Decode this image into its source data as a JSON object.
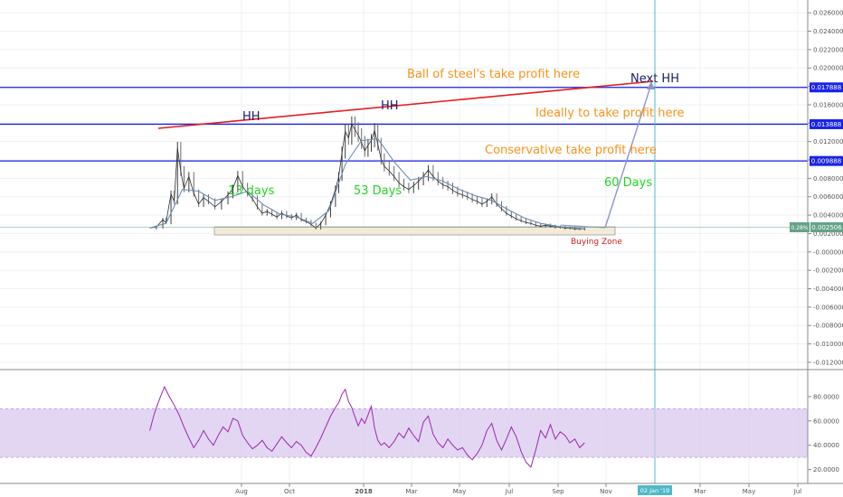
{
  "chart_data": [
    {
      "type": "candlestick",
      "price_axis": {
        "ticks": [
          "0.026000",
          "0.024000",
          "0.022000",
          "0.020000",
          "0.018000",
          "0.016000",
          "0.014000",
          "0.012000",
          "0.010000",
          "0.008000",
          "0.006000",
          "0.004000",
          "0.002000",
          "-0.000000",
          "-0.002000",
          "-0.004000",
          "-0.006000",
          "-0.008000",
          "-0.010000",
          "-0.012000"
        ],
        "range": [
          -0.0125,
          0.027
        ]
      },
      "time_axis": {
        "labels": [
          "Aug",
          "Oct",
          "2018",
          "Mar",
          "May",
          "Jul",
          "Sep",
          "Nov",
          "02 Jan '19",
          "Mar",
          "May",
          "Jul"
        ]
      },
      "price_lines": [
        {
          "label": "0.017888",
          "value": 0.017888,
          "color": "#1a24e6"
        },
        {
          "label": "0.013888",
          "value": 0.013888,
          "color": "#1a24e6"
        },
        {
          "label": "0.009888",
          "value": 0.009888,
          "color": "#1a24e6"
        }
      ],
      "current_price": {
        "label": "0.002506",
        "change": "0.28%",
        "value": 0.002506,
        "color": "#63a389"
      },
      "series_price": [
        [
          0,
          0.0026
        ],
        [
          4,
          0.0027
        ],
        [
          8,
          0.0035
        ],
        [
          10,
          0.0032
        ],
        [
          13,
          0.0063
        ],
        [
          15,
          0.0055
        ],
        [
          17,
          0.0113
        ],
        [
          19,
          0.0088
        ],
        [
          21,
          0.0069
        ],
        [
          24,
          0.0082
        ],
        [
          27,
          0.0064
        ],
        [
          30,
          0.0052
        ],
        [
          33,
          0.0059
        ],
        [
          36,
          0.0055
        ],
        [
          40,
          0.0049
        ],
        [
          44,
          0.0055
        ],
        [
          48,
          0.0062
        ],
        [
          51,
          0.0069
        ],
        [
          54,
          0.0083
        ],
        [
          57,
          0.0071
        ],
        [
          60,
          0.0064
        ],
        [
          63,
          0.0058
        ],
        [
          66,
          0.0049
        ],
        [
          69,
          0.0042
        ],
        [
          72,
          0.0044
        ],
        [
          75,
          0.0041
        ],
        [
          78,
          0.0038
        ],
        [
          81,
          0.0042
        ],
        [
          84,
          0.0039
        ],
        [
          87,
          0.0037
        ],
        [
          90,
          0.004
        ],
        [
          93,
          0.0035
        ],
        [
          96,
          0.0033
        ],
        [
          99,
          0.003
        ],
        [
          102,
          0.0026
        ],
        [
          105,
          0.0031
        ],
        [
          108,
          0.004
        ],
        [
          111,
          0.0052
        ],
        [
          114,
          0.0068
        ],
        [
          116,
          0.0082
        ],
        [
          118,
          0.0108
        ],
        [
          120,
          0.0131
        ],
        [
          122,
          0.0124
        ],
        [
          124,
          0.0139
        ],
        [
          126,
          0.0133
        ],
        [
          128,
          0.0127
        ],
        [
          130,
          0.0119
        ],
        [
          132,
          0.011
        ],
        [
          134,
          0.0116
        ],
        [
          136,
          0.0121
        ],
        [
          138,
          0.0132
        ],
        [
          140,
          0.0117
        ],
        [
          142,
          0.0101
        ],
        [
          144,
          0.0093
        ],
        [
          147,
          0.0088
        ],
        [
          150,
          0.0082
        ],
        [
          153,
          0.0075
        ],
        [
          156,
          0.0071
        ],
        [
          159,
          0.0068
        ],
        [
          162,
          0.0072
        ],
        [
          165,
          0.0077
        ],
        [
          168,
          0.0082
        ],
        [
          171,
          0.0089
        ],
        [
          174,
          0.0082
        ],
        [
          177,
          0.0077
        ],
        [
          180,
          0.0073
        ],
        [
          183,
          0.0071
        ],
        [
          186,
          0.0067
        ],
        [
          189,
          0.0064
        ],
        [
          192,
          0.0062
        ],
        [
          195,
          0.006
        ],
        [
          198,
          0.0057
        ],
        [
          201,
          0.0055
        ],
        [
          204,
          0.0052
        ],
        [
          207,
          0.0055
        ],
        [
          210,
          0.006
        ],
        [
          213,
          0.0052
        ],
        [
          216,
          0.0047
        ],
        [
          219,
          0.0042
        ],
        [
          222,
          0.0039
        ],
        [
          225,
          0.0036
        ],
        [
          228,
          0.0034
        ],
        [
          231,
          0.0032
        ],
        [
          234,
          0.0031
        ],
        [
          237,
          0.0029
        ],
        [
          240,
          0.0028
        ],
        [
          243,
          0.0029
        ],
        [
          246,
          0.0028
        ],
        [
          249,
          0.0027
        ],
        [
          252,
          0.0027
        ],
        [
          255,
          0.0026
        ],
        [
          258,
          0.0026
        ],
        [
          261,
          0.0025
        ],
        [
          264,
          0.0025
        ],
        [
          267,
          0.0025
        ]
      ],
      "series_ma": [
        [
          0,
          0.0026
        ],
        [
          10,
          0.0031
        ],
        [
          20,
          0.0068
        ],
        [
          30,
          0.0066
        ],
        [
          40,
          0.0056
        ],
        [
          50,
          0.006
        ],
        [
          60,
          0.0066
        ],
        [
          70,
          0.0051
        ],
        [
          80,
          0.0041
        ],
        [
          90,
          0.0038
        ],
        [
          100,
          0.0031
        ],
        [
          110,
          0.0045
        ],
        [
          120,
          0.0095
        ],
        [
          130,
          0.0121
        ],
        [
          140,
          0.0123
        ],
        [
          150,
          0.0098
        ],
        [
          160,
          0.0078
        ],
        [
          170,
          0.0082
        ],
        [
          180,
          0.0077
        ],
        [
          190,
          0.0068
        ],
        [
          200,
          0.0061
        ],
        [
          210,
          0.0056
        ],
        [
          220,
          0.0046
        ],
        [
          230,
          0.0037
        ],
        [
          240,
          0.0031
        ],
        [
          250,
          0.0028
        ],
        [
          260,
          0.0026
        ],
        [
          267,
          0.0025
        ]
      ],
      "x_domain": [
        -92,
        404
      ]
    },
    {
      "type": "line",
      "y_axis": {
        "ticks": [
          "80.0000",
          "60.0000",
          "40.0000",
          "20.0000"
        ],
        "range": [
          10,
          100
        ]
      },
      "band": [
        30,
        70
      ],
      "series": [
        {
          "values": [
            [
              0,
              52
            ],
            [
              3,
              67
            ],
            [
              6,
              78
            ],
            [
              9,
              88
            ],
            [
              12,
              80
            ],
            [
              15,
              73
            ],
            [
              18,
              65
            ],
            [
              21,
              55
            ],
            [
              24,
              46
            ],
            [
              27,
              38
            ],
            [
              30,
              44
            ],
            [
              33,
              52
            ],
            [
              36,
              45
            ],
            [
              39,
              40
            ],
            [
              42,
              48
            ],
            [
              45,
              55
            ],
            [
              48,
              51
            ],
            [
              51,
              62
            ],
            [
              54,
              60
            ],
            [
              57,
              48
            ],
            [
              60,
              42
            ],
            [
              63,
              37
            ],
            [
              66,
              40
            ],
            [
              69,
              44
            ],
            [
              72,
              38
            ],
            [
              75,
              35
            ],
            [
              78,
              41
            ],
            [
              81,
              47
            ],
            [
              84,
              42
            ],
            [
              87,
              38
            ],
            [
              90,
              43
            ],
            [
              93,
              40
            ],
            [
              96,
              34
            ],
            [
              99,
              31
            ],
            [
              102,
              38
            ],
            [
              105,
              46
            ],
            [
              108,
              55
            ],
            [
              111,
              64
            ],
            [
              114,
              71
            ],
            [
              116,
              75
            ],
            [
              118,
              82
            ],
            [
              120,
              86
            ],
            [
              122,
              76
            ],
            [
              124,
              71
            ],
            [
              126,
              63
            ],
            [
              128,
              56
            ],
            [
              130,
              62
            ],
            [
              132,
              58
            ],
            [
              134,
              65
            ],
            [
              136,
              72
            ],
            [
              138,
              54
            ],
            [
              140,
              44
            ],
            [
              142,
              40
            ],
            [
              144,
              42
            ],
            [
              147,
              38
            ],
            [
              150,
              43
            ],
            [
              153,
              50
            ],
            [
              156,
              46
            ],
            [
              159,
              54
            ],
            [
              162,
              48
            ],
            [
              165,
              43
            ],
            [
              168,
              59
            ],
            [
              171,
              64
            ],
            [
              174,
              49
            ],
            [
              177,
              42
            ],
            [
              180,
              38
            ],
            [
              183,
              45
            ],
            [
              186,
              40
            ],
            [
              189,
              36
            ],
            [
              192,
              38
            ],
            [
              195,
              32
            ],
            [
              198,
              28
            ],
            [
              201,
              33
            ],
            [
              204,
              40
            ],
            [
              207,
              52
            ],
            [
              210,
              58
            ],
            [
              213,
              44
            ],
            [
              216,
              36
            ],
            [
              219,
              45
            ],
            [
              222,
              55
            ],
            [
              225,
              47
            ],
            [
              228,
              35
            ],
            [
              231,
              26
            ],
            [
              234,
              22
            ],
            [
              237,
              36
            ],
            [
              240,
              52
            ],
            [
              243,
              46
            ],
            [
              246,
              57
            ],
            [
              249,
              45
            ],
            [
              252,
              51
            ],
            [
              255,
              48
            ],
            [
              258,
              42
            ],
            [
              261,
              45
            ],
            [
              264,
              38
            ],
            [
              267,
              42
            ]
          ],
          "color": "#9c27b0"
        }
      ]
    }
  ],
  "annotations": {
    "hh_left": "HH",
    "hh_mid": "HH",
    "next_hh": "Next HH",
    "days_13": "13 days",
    "days_53": "53 Days",
    "days_60": "60 Days",
    "ball_of_steel": "Ball of steel's take profit here",
    "ideally": "Ideally to take profit here",
    "conservative": "Conservative take profit here",
    "buying_zone": "Buying Zone"
  },
  "colors": {
    "text_orange": "#f7931a",
    "text_green": "#22d422",
    "text_navy": "#1b2166",
    "text_red": "#d01c1c",
    "trendline": "#e51d1d",
    "hline": "#1a24e6",
    "arrow": "#8e96c8",
    "vline": "#4fb8c8",
    "rsi": "#9c27b0",
    "rsi_band": "#d9c8ee"
  }
}
